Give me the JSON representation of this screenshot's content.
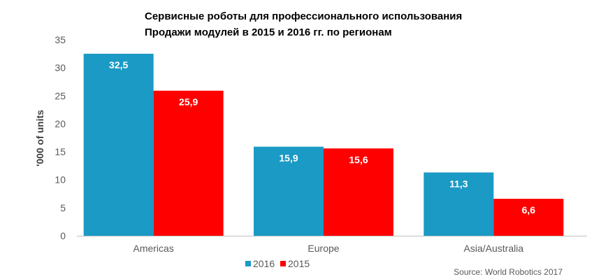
{
  "chart_data": {
    "type": "bar",
    "title": "Сервисные роботы для профессионального использования",
    "subtitle": "Продажи модулей в 2015 и 2016 гг. по регионам",
    "xlabel": "",
    "ylabel": "'000 of units",
    "ylim": [
      0,
      35
    ],
    "yticks": [
      0,
      5,
      10,
      15,
      20,
      25,
      30,
      35
    ],
    "grid": false,
    "legend_position": "bottom-left",
    "categories": [
      "Americas",
      "Europe",
      "Asia/Australia"
    ],
    "series": [
      {
        "name": "2016",
        "color": "#1a9ac4",
        "values": [
          32.5,
          15.9,
          11.3
        ],
        "labels": [
          "32,5",
          "15,9",
          "11,3"
        ]
      },
      {
        "name": "2015",
        "color": "#ff0000",
        "values": [
          25.9,
          15.6,
          6.6
        ],
        "labels": [
          "25,9",
          "15,6",
          "6,6"
        ]
      }
    ],
    "source": "Source: World Robotics 2017"
  }
}
